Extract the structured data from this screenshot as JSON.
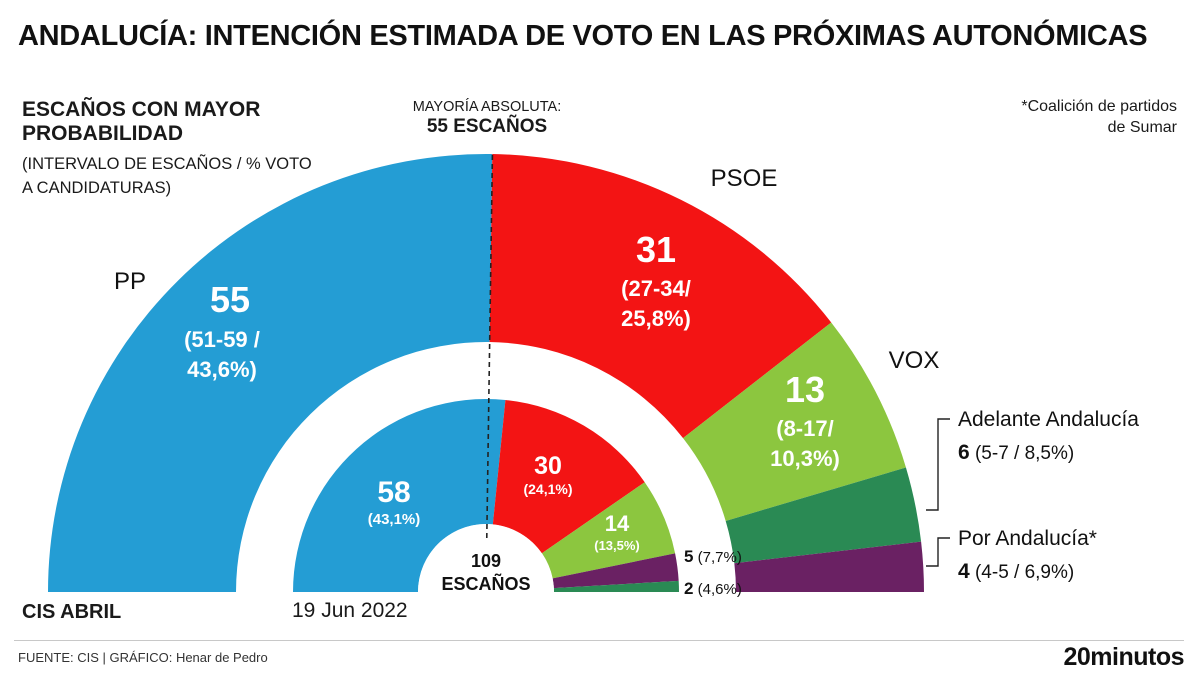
{
  "header": {
    "title": "ANDALUCÍA: INTENCIÓN ESTIMADA DE VOTO EN LAS PRÓXIMAS AUTONÓMICAS"
  },
  "legend": {
    "title": "ESCAÑOS CON MAYOR PROBABILIDAD",
    "subtitle": "(INTERVALO DE ESCAÑOS / % VOTO A CANDIDATURAS)"
  },
  "majority": {
    "label": "MAYORÍA ABSOLUTA:",
    "value": "55 ESCAÑOS"
  },
  "note": "*Coalición de partidos de Sumar",
  "labels": {
    "survey": "CIS ABRIL",
    "previous_election": "19 Jun 2022"
  },
  "footer": {
    "source": "FUENTE: CIS  |  GRÁFICO: Henar de Pedro",
    "logo": "20minutos"
  },
  "chart_data": [
    {
      "type": "pie",
      "subtype": "parliament-hemicycle",
      "title": "CIS ABRIL",
      "total_seats": 109,
      "majority": 55,
      "series": [
        {
          "name": "PP",
          "seats": 55,
          "range": "51-59",
          "vote_pct": "43,6%",
          "color": "#249dd4"
        },
        {
          "name": "PSOE",
          "seats": 31,
          "range": "27-34",
          "vote_pct": "25,8%",
          "color": "#f31414"
        },
        {
          "name": "VOX",
          "seats": 13,
          "range": "8-17",
          "vote_pct": "10,3%",
          "color": "#8cc63f"
        },
        {
          "name": "Adelante Andalucía",
          "seats": 6,
          "range": "5-7",
          "vote_pct": "8,5%",
          "color": "#2a8a54"
        },
        {
          "name": "Por Andalucía*",
          "seats": 4,
          "range": "4-5",
          "vote_pct": "6,9%",
          "color": "#6a2163"
        }
      ]
    },
    {
      "type": "pie",
      "subtype": "parliament-hemicycle",
      "title": "19 Jun 2022",
      "total_seats": 109,
      "center_label": [
        "109",
        "ESCAÑOS"
      ],
      "series": [
        {
          "name": "PP",
          "seats": 58,
          "vote_pct": "43,1%",
          "color": "#249dd4"
        },
        {
          "name": "PSOE",
          "seats": 30,
          "vote_pct": "24,1%",
          "color": "#f31414"
        },
        {
          "name": "VOX",
          "seats": 14,
          "vote_pct": "13,5%",
          "color": "#8cc63f"
        },
        {
          "name": "Por Andalucía",
          "seats": 5,
          "vote_pct": "7,7%",
          "color": "#6a2163"
        },
        {
          "name": "Adelante Andalucía",
          "seats": 2,
          "vote_pct": "4,6%",
          "color": "#2a8a54"
        }
      ]
    }
  ]
}
